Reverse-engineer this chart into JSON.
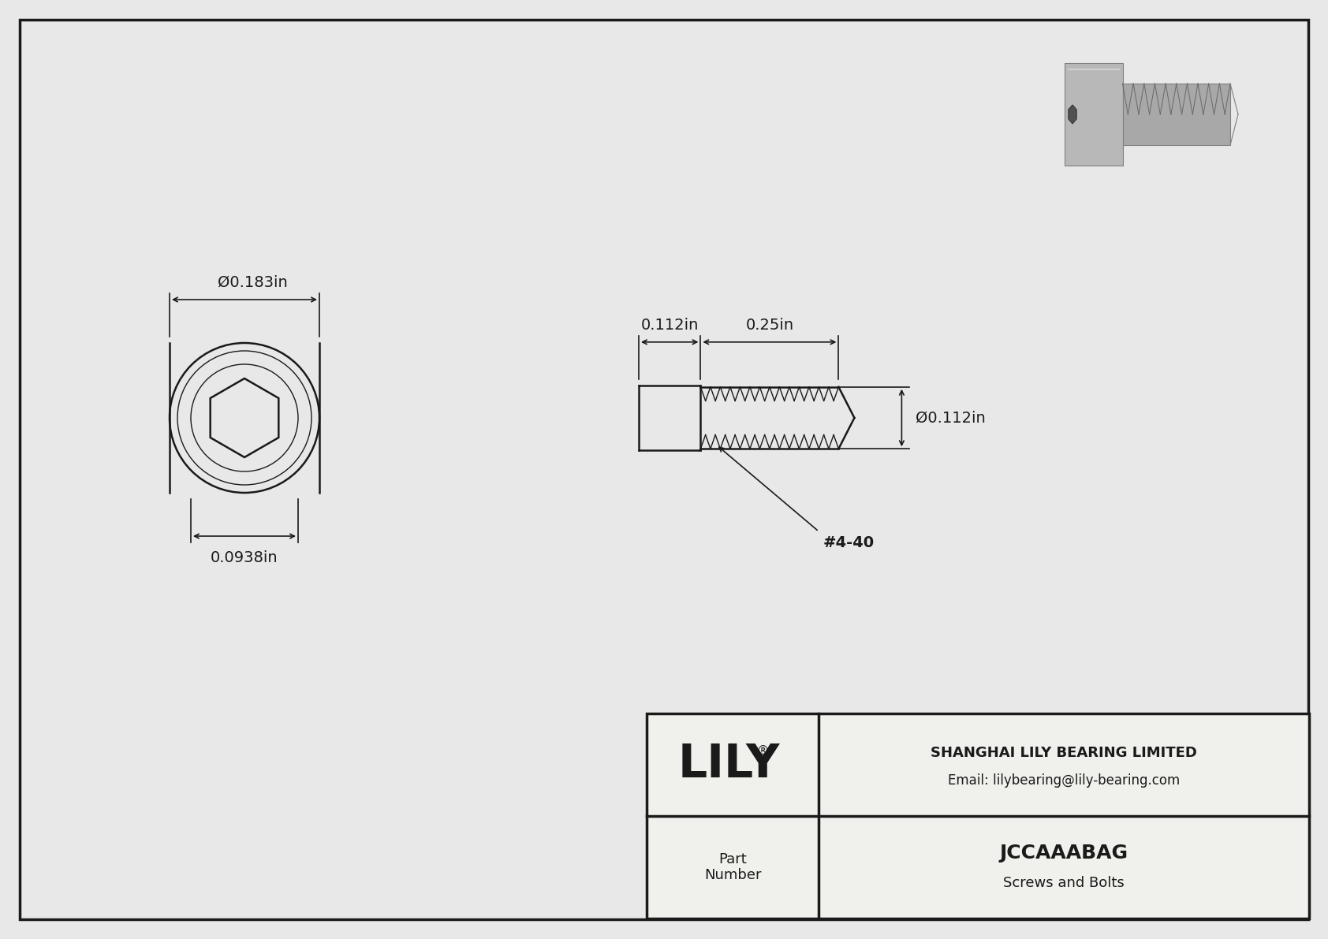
{
  "bg_color": "#e8e8e8",
  "drawing_bg": "#f2f2ee",
  "line_color": "#1a1a1a",
  "title": "JCCAAABAG",
  "subtitle": "Screws and Bolts",
  "company": "SHANGHAI LILY BEARING LIMITED",
  "email": "Email: lilybearing@lily-bearing.com",
  "part_label": "Part\nNumber",
  "lily_text": "LILY",
  "lily_registered": "®",
  "dim_head_length": "0.112in",
  "dim_thread_length": "0.25in",
  "dim_diameter_front": "Ø0.183in",
  "dim_diameter_side": "Ø0.112in",
  "dim_socket_depth": "0.0938in",
  "thread_label": "#4-40"
}
